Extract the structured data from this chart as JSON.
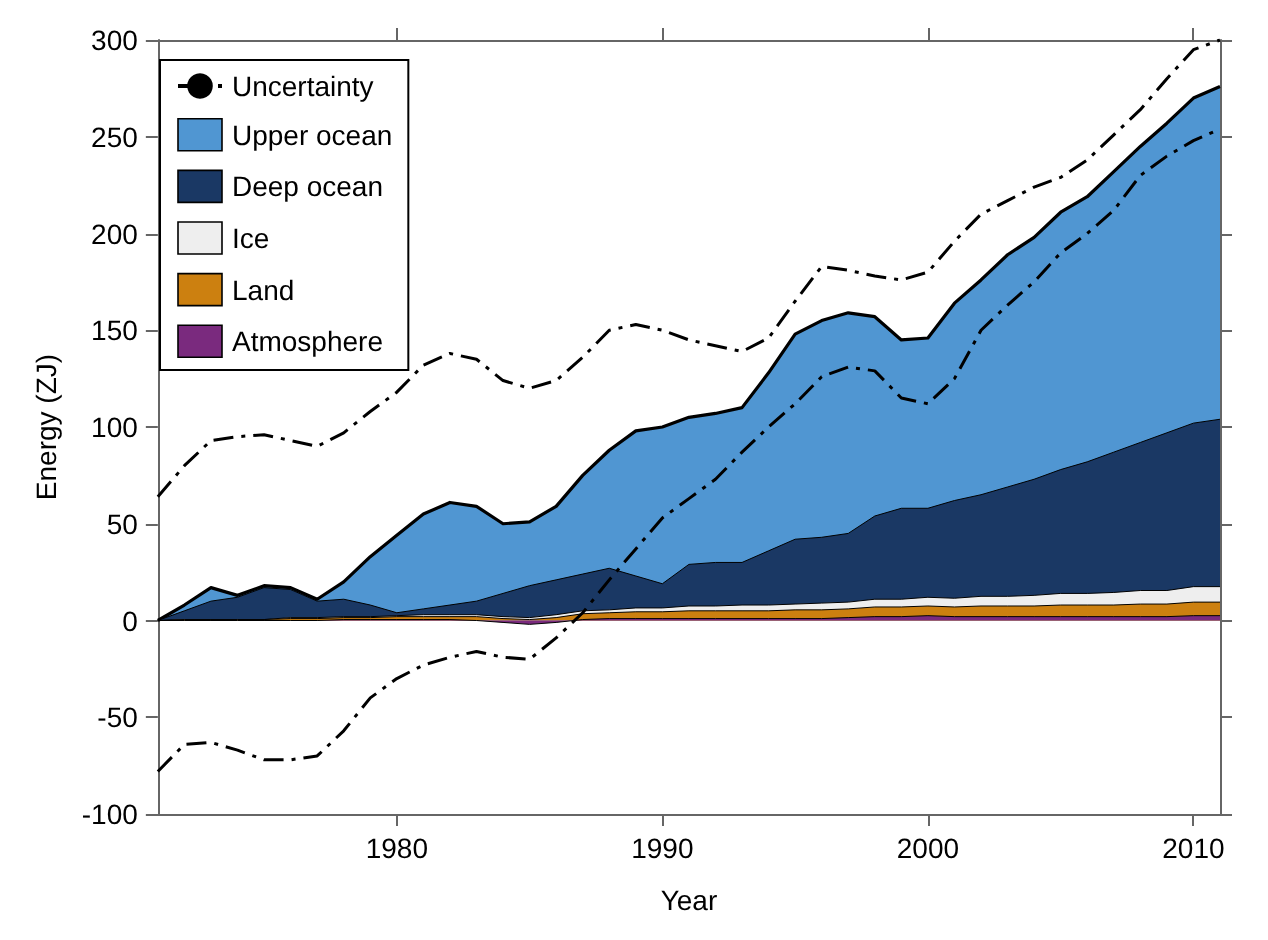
{
  "chart_data": {
    "type": "area",
    "xlabel": "Year",
    "ylabel": "Energy (ZJ)",
    "stacked": true,
    "legend": "top left",
    "xlim": [
      1971,
      2011
    ],
    "xticks": [
      1980,
      1990,
      2000,
      2010
    ],
    "ylim": [
      -100,
      300
    ],
    "yticks": [
      -100,
      -50,
      0,
      50,
      100,
      150,
      200,
      250,
      300
    ],
    "x": [
      1971,
      1972,
      1973,
      1974,
      1975,
      1976,
      1977,
      1978,
      1979,
      1980,
      1981,
      1982,
      1983,
      1984,
      1985,
      1986,
      1987,
      1988,
      1989,
      1990,
      1991,
      1992,
      1993,
      1994,
      1995,
      1996,
      1997,
      1998,
      1999,
      2000,
      2001,
      2002,
      2003,
      2004,
      2005,
      2006,
      2007,
      2008,
      2009,
      2010,
      2011
    ],
    "series": [
      {
        "name": "Atmosphere",
        "color": "#7a2a7e",
        "values": [
          0,
          0,
          0,
          0,
          0,
          0,
          0,
          0.5,
          0.5,
          0.5,
          0.5,
          0.5,
          0,
          -1,
          -2,
          -1,
          0.5,
          1,
          1,
          1,
          1,
          1,
          1,
          1,
          1,
          1,
          1.5,
          2,
          2,
          2.5,
          2,
          2,
          2,
          2,
          2,
          2,
          2,
          2,
          2,
          2.5,
          2.5
        ]
      },
      {
        "name": "Land",
        "color": "#cc8010",
        "values": [
          0,
          0.5,
          0.5,
          0.5,
          0.5,
          1,
          1,
          1,
          1,
          1.5,
          1.5,
          1.5,
          2,
          2,
          2.5,
          2.5,
          3,
          3,
          3.5,
          3.5,
          4,
          4,
          4,
          4,
          4.5,
          4.5,
          4.5,
          5,
          5,
          5,
          5,
          5.5,
          5.5,
          5.5,
          6,
          6,
          6,
          6.5,
          6.5,
          7,
          7
        ]
      },
      {
        "name": "Ice",
        "color": "#eeeeee",
        "values": [
          0,
          0,
          0,
          0,
          0,
          0.5,
          0.5,
          0.5,
          0.5,
          0.5,
          1,
          1,
          1,
          1,
          1,
          1.5,
          1.5,
          1.5,
          2,
          2,
          2.5,
          2.5,
          3,
          3,
          3,
          3.5,
          3.5,
          4,
          4,
          4.5,
          4.5,
          5,
          5,
          5.5,
          6,
          6,
          6.5,
          7,
          7,
          8,
          8
        ]
      },
      {
        "name": "Deep ocean",
        "color": "#1a3864",
        "values": [
          0,
          4.5,
          9.5,
          11.5,
          16.5,
          14.5,
          8.5,
          9,
          6,
          1.5,
          3,
          5,
          7,
          12,
          16.5,
          18,
          19,
          21.5,
          16.5,
          12.5,
          21.5,
          22.5,
          22,
          28,
          33.5,
          34,
          35.5,
          43,
          47,
          46,
          50.5,
          52.5,
          56.5,
          60,
          64,
          68,
          72.5,
          76.5,
          81.5,
          84.5,
          86.5
        ]
      },
      {
        "name": "Upper ocean",
        "color": "#5096d2",
        "values": [
          0,
          3,
          7,
          1,
          1,
          1,
          1,
          9,
          25,
          40,
          49,
          53,
          49,
          36,
          33,
          38,
          51,
          61,
          75,
          81,
          76,
          77,
          80,
          92,
          106,
          112,
          114,
          103,
          87,
          88,
          102,
          111,
          120,
          125,
          133,
          137,
          145,
          153,
          160,
          168,
          172
        ]
      },
      {
        "name": "Uncertainty",
        "type": "line",
        "color": "#000000",
        "line_style": "dashed",
        "values": [
          64,
          80,
          93,
          95,
          96,
          93,
          90,
          97,
          108,
          118,
          132,
          138,
          135,
          124,
          120,
          124,
          136,
          150,
          153,
          150,
          145,
          142,
          139,
          146,
          165,
          183,
          181,
          178,
          176,
          180,
          196,
          210,
          217,
          224,
          229,
          238,
          251,
          264,
          280,
          295,
          300
        ]
      },
      {
        "type": "line",
        "color": "#000000",
        "line_style": "dashed",
        "values": [
          -78,
          -64,
          -63,
          -67,
          -72,
          -72,
          -70,
          -57,
          -40,
          -30,
          -23,
          -19,
          -16,
          -19,
          -20,
          -9,
          4,
          21,
          37,
          53,
          63,
          73,
          87,
          100,
          112,
          126,
          131,
          129,
          115,
          112,
          125,
          150,
          163,
          175,
          190,
          200,
          212,
          230,
          240,
          248,
          254
        ]
      }
    ]
  }
}
